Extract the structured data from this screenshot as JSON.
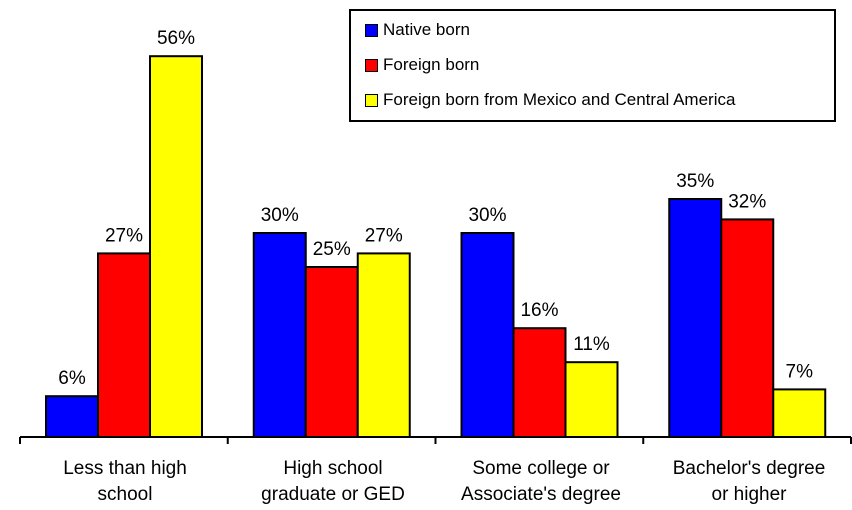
{
  "chart_data": {
    "type": "bar",
    "categories": [
      [
        "Less than high",
        "school"
      ],
      [
        "High school",
        "graduate or GED"
      ],
      [
        "Some college or",
        "Associate's degree"
      ],
      [
        "Bachelor's degree",
        "or higher"
      ]
    ],
    "series": [
      {
        "name": "Native born",
        "color": "#0000FF",
        "values": [
          6,
          30,
          30,
          35
        ],
        "labels": [
          "6%",
          "30%",
          "30%",
          "35%"
        ]
      },
      {
        "name": "Foreign born",
        "color": "#FF0000",
        "values": [
          27,
          25,
          16,
          32
        ],
        "labels": [
          "27%",
          "25%",
          "16%",
          "32%"
        ]
      },
      {
        "name": "Foreign born from Mexico and Central America",
        "color": "#FFFF00",
        "values": [
          56,
          27,
          11,
          7
        ],
        "labels": [
          "56%",
          "27%",
          "11%",
          "7%"
        ]
      }
    ],
    "ylim": [
      0,
      60
    ],
    "legend_position": "top-right",
    "grid": false
  }
}
